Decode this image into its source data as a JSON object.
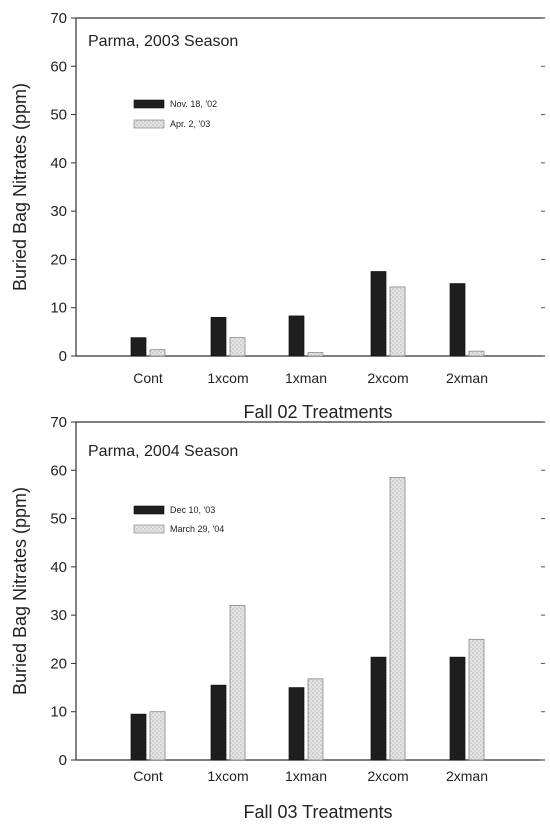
{
  "chart_data": [
    {
      "type": "bar",
      "title": "Parma, 2003 Season",
      "xlabel": "Fall 02 Treatments",
      "ylabel": "Buried Bag Nitrates (ppm)",
      "ylim": [
        0,
        70
      ],
      "yticks": [
        0,
        10,
        20,
        30,
        40,
        50,
        60,
        70
      ],
      "categories": [
        "Cont",
        "1xcom",
        "1xman",
        "2xcom",
        "2xman"
      ],
      "legend_position": "upper-left",
      "series": [
        {
          "name": "Nov. 18, '02",
          "values": [
            3.8,
            8.0,
            8.3,
            17.5,
            15.0
          ],
          "color": "#1e1e1e",
          "pattern": "solid"
        },
        {
          "name": "Apr. 2, '03",
          "values": [
            1.3,
            3.8,
            0.7,
            14.3,
            1.0
          ],
          "color": "#dcdcdc",
          "pattern": "stipple"
        }
      ]
    },
    {
      "type": "bar",
      "title": "Parma, 2004 Season",
      "xlabel": "Fall 03 Treatments",
      "ylabel": "Buried Bag Nitrates (ppm)",
      "ylim": [
        0,
        70
      ],
      "yticks": [
        0,
        10,
        20,
        30,
        40,
        50,
        60,
        70
      ],
      "categories": [
        "Cont",
        "1xcom",
        "1xman",
        "2xcom",
        "2xman"
      ],
      "legend_position": "upper-left",
      "series": [
        {
          "name": "Dec 10, '03",
          "values": [
            9.5,
            15.5,
            15.0,
            21.3,
            21.3
          ],
          "color": "#1e1e1e",
          "pattern": "solid"
        },
        {
          "name": "March 29, '04",
          "values": [
            10.0,
            32.0,
            16.8,
            58.5,
            25.0
          ],
          "color": "#dcdcdc",
          "pattern": "stipple"
        }
      ]
    }
  ]
}
